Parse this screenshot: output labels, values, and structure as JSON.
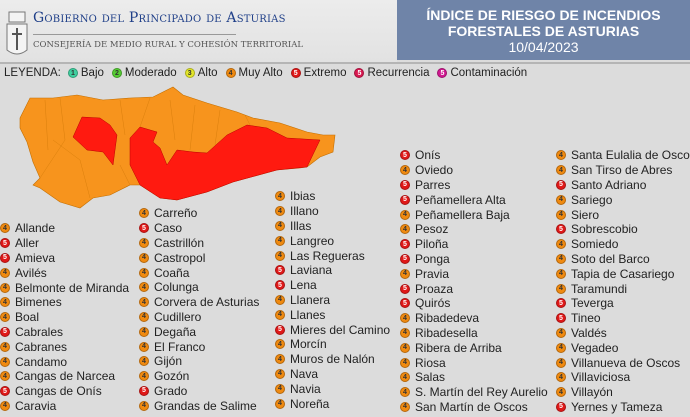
{
  "header": {
    "government": "Gobierno del Principado de Asturias",
    "department": "Consejería de Medio Rural y Cohesión Territorial",
    "title_line1": "ÍNDICE DE RIESGO DE INCENDIOS",
    "title_line2": "FORESTALES DE ASTURIAS",
    "date": "10/04/2023"
  },
  "legend": {
    "label": "LEYENDA:",
    "items": [
      {
        "num": "1",
        "label": "Bajo",
        "color": "#3fd0a0"
      },
      {
        "num": "2",
        "label": "Moderado",
        "color": "#55cc33"
      },
      {
        "num": "3",
        "label": "Alto",
        "color": "#e3e62a"
      },
      {
        "num": "4",
        "label": "Muy Alto",
        "color": "#f08a10"
      },
      {
        "num": "5",
        "label": "Extremo",
        "color": "#e01818"
      },
      {
        "num": "5",
        "label": "Recurrencia",
        "color": "#d81850"
      },
      {
        "num": "5",
        "label": "Contaminación",
        "color": "#d01890"
      }
    ]
  },
  "colors": {
    "level4": "#f7941d",
    "level5": "#ff1a10",
    "border": "#b85f00"
  },
  "columns": [
    [
      [
        "Allande",
        4
      ],
      [
        "Aller",
        5
      ],
      [
        "Amieva",
        5
      ],
      [
        "Avilés",
        4
      ],
      [
        "Belmonte de Miranda",
        4
      ],
      [
        "Bimenes",
        4
      ],
      [
        "Boal",
        4
      ],
      [
        "Cabrales",
        5
      ],
      [
        "Cabranes",
        4
      ],
      [
        "Candamo",
        4
      ],
      [
        "Cangas de Narcea",
        4
      ],
      [
        "Cangas de Onís",
        5
      ],
      [
        "Caravia",
        4
      ]
    ],
    [
      [
        "Carreño",
        4
      ],
      [
        "Caso",
        5
      ],
      [
        "Castrillón",
        4
      ],
      [
        "Castropol",
        4
      ],
      [
        "Coaña",
        4
      ],
      [
        "Colunga",
        4
      ],
      [
        "Corvera de Asturias",
        4
      ],
      [
        "Cudillero",
        4
      ],
      [
        "Degaña",
        4
      ],
      [
        "El Franco",
        4
      ],
      [
        "Gijón",
        4
      ],
      [
        "Gozón",
        4
      ],
      [
        "Grado",
        5
      ],
      [
        "Grandas de Salime",
        4
      ]
    ],
    [
      [
        "Ibias",
        4
      ],
      [
        "Illano",
        4
      ],
      [
        "Illas",
        4
      ],
      [
        "Langreo",
        4
      ],
      [
        "Las Regueras",
        4
      ],
      [
        "Laviana",
        5
      ],
      [
        "Lena",
        5
      ],
      [
        "Llanera",
        4
      ],
      [
        "Llanes",
        4
      ],
      [
        "Mieres del Camino",
        5
      ],
      [
        "Morcín",
        4
      ],
      [
        "Muros de Nalón",
        4
      ],
      [
        "Nava",
        4
      ],
      [
        "Navia",
        4
      ],
      [
        "Noreña",
        4
      ]
    ],
    [
      [
        "Onís",
        5
      ],
      [
        "Oviedo",
        4
      ],
      [
        "Parres",
        5
      ],
      [
        "Peñamellera Alta",
        5
      ],
      [
        "Peñamellera Baja",
        4
      ],
      [
        "Pesoz",
        4
      ],
      [
        "Piloña",
        5
      ],
      [
        "Ponga",
        5
      ],
      [
        "Pravia",
        4
      ],
      [
        "Proaza",
        5
      ],
      [
        "Quirós",
        5
      ],
      [
        "Ribadedeva",
        4
      ],
      [
        "Ribadesella",
        4
      ],
      [
        "Ribera de Arriba",
        4
      ],
      [
        "Riosa",
        4
      ],
      [
        "Salas",
        4
      ],
      [
        "S. Martín del Rey Aurelio",
        4
      ],
      [
        "San Martín de Oscos",
        4
      ]
    ],
    [
      [
        "Santa Eulalia de Oscos",
        4
      ],
      [
        "San Tirso de Abres",
        4
      ],
      [
        "Santo Adriano",
        5
      ],
      [
        "Sariego",
        4
      ],
      [
        "Siero",
        4
      ],
      [
        "Sobrescobio",
        5
      ],
      [
        "Somiedo",
        4
      ],
      [
        "Soto del Barco",
        4
      ],
      [
        "Tapia de Casariego",
        4
      ],
      [
        "Taramundi",
        4
      ],
      [
        "Teverga",
        5
      ],
      [
        "Tineo",
        5
      ],
      [
        "Valdés",
        4
      ],
      [
        "Vegadeo",
        4
      ],
      [
        "Villanueva de Oscos",
        4
      ],
      [
        "Villaviciosa",
        4
      ],
      [
        "Villayón",
        4
      ],
      [
        "Yernes y Tameza",
        5
      ]
    ]
  ]
}
